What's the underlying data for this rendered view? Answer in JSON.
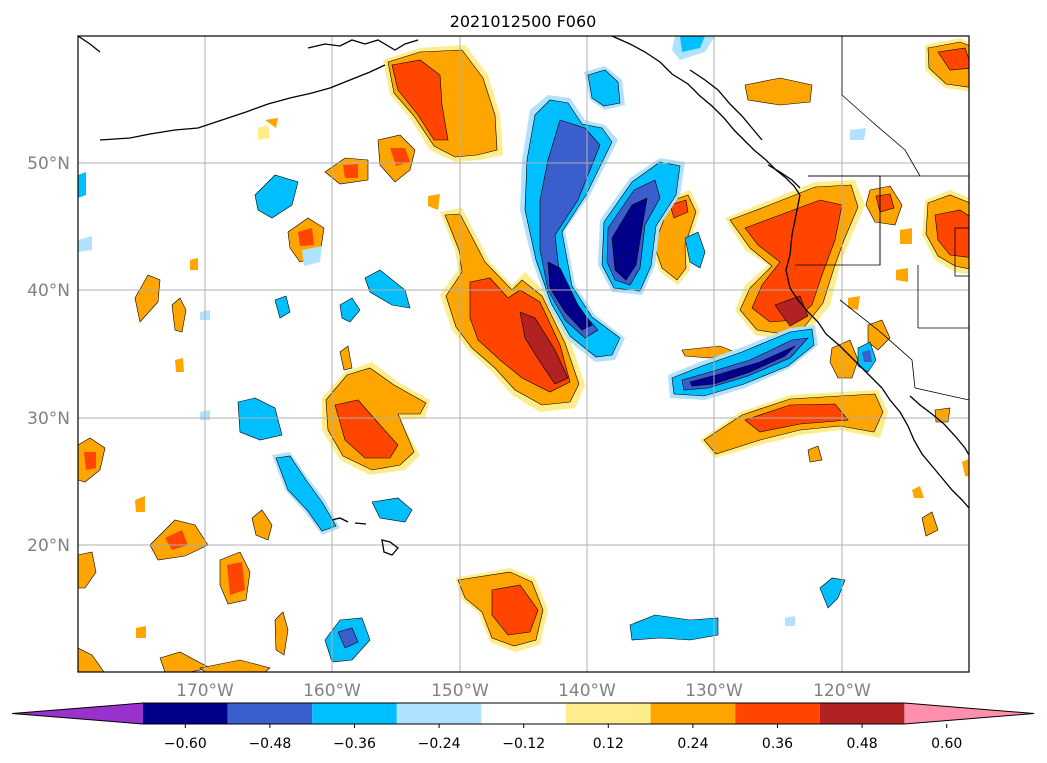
{
  "map": {
    "title": "2021012500 F060",
    "lat_labels": [
      "50°N",
      "40°N",
      "30°N",
      "20°N"
    ],
    "lon_labels": [
      "170°W",
      "160°W",
      "150°W",
      "140°W",
      "130°W",
      "120°W"
    ],
    "extent": {
      "lon_min": -180,
      "lon_max": -110,
      "lat_min": 10,
      "lat_max": 60
    },
    "gridlines": true,
    "colorbar": {
      "orientation": "horizontal",
      "placement": "bottom",
      "extend": "both",
      "tick_labels": [
        "−0.60",
        "−0.48",
        "−0.36",
        "−0.24",
        "−0.12",
        "0.12",
        "0.24",
        "0.36",
        "0.48",
        "0.60"
      ],
      "levels": [
        -0.6,
        -0.48,
        -0.36,
        -0.24,
        -0.12,
        0.12,
        0.24,
        0.36,
        0.48,
        0.6
      ],
      "colors": [
        "#9932cc",
        "#00008b",
        "#3a5fcd",
        "#00bfff",
        "#b0e2ff",
        "#ffffff",
        "#ffec8b",
        "#ffa500",
        "#ff4500",
        "#b22222",
        "#ff8fab"
      ]
    }
  }
}
